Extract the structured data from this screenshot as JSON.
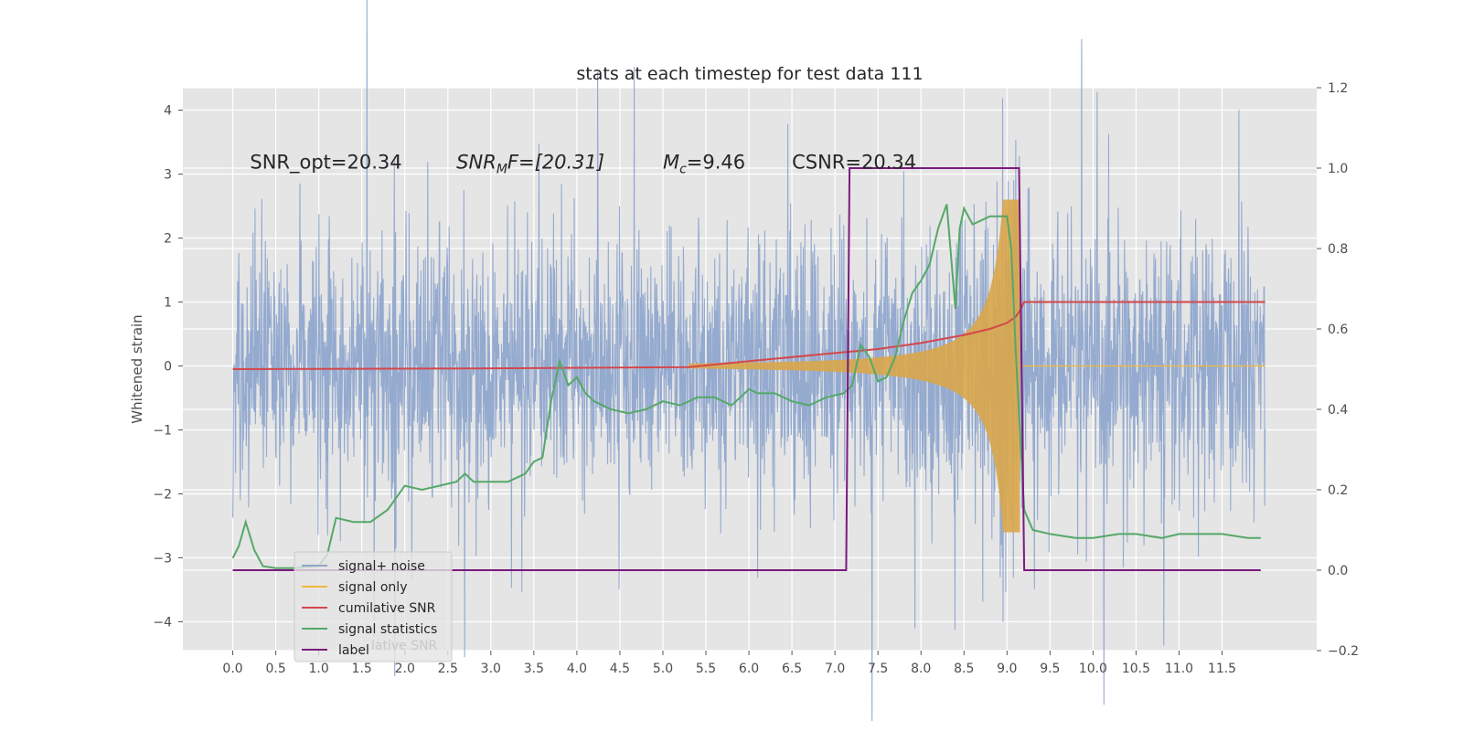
{
  "chart_data": {
    "type": "line",
    "title": "stats at each timestep for test data 111",
    "ylabel": "Whitened strain",
    "xlabel": "",
    "xlim": [
      -0.58,
      12.6
    ],
    "ylim": [
      -4.45,
      4.35
    ],
    "y2lim": [
      -0.2,
      1.2
    ],
    "x_ticks": [
      "0.0",
      "0.5",
      "1.0",
      "1.5",
      "2.0",
      "2.5",
      "3.0",
      "3.5",
      "4.0",
      "4.5",
      "5.0",
      "5.5",
      "6.0",
      "6.5",
      "7.0",
      "7.5",
      "8.0",
      "8.5",
      "9.0",
      "9.5",
      "10.0",
      "10.5",
      "11.0",
      "11.5"
    ],
    "y_ticks": [
      4,
      3,
      2,
      1,
      0,
      -1,
      -2,
      -3,
      -4
    ],
    "y2_ticks": [
      "1.2",
      "1.0",
      "0.8",
      "0.6",
      "0.4",
      "0.2",
      "0.0",
      "-0.2"
    ],
    "grid": true,
    "legend_position": "lower-left",
    "annotations": {
      "snr_opt": {
        "x": 0.2,
        "y": 3.2,
        "text": "SNR_opt=20.34"
      },
      "snr_mf": {
        "x": 2.6,
        "y": 3.2,
        "main": "SNR",
        "sub": "M",
        "tail": "F=[20.31]"
      },
      "mc": {
        "x": 5.0,
        "y": 3.2,
        "main": "M",
        "sub": "c",
        "tail": "=9.46"
      },
      "csnr": {
        "x": 6.5,
        "y": 3.2,
        "text": "CSNR=20.34"
      }
    },
    "series": [
      {
        "name": "signal+ noise",
        "axis": "left",
        "color": "#8fa7cd",
        "x_range": [
          0.0,
          12.0
        ],
        "noise_band": [
          -2.6,
          2.7
        ]
      },
      {
        "name": "signal only",
        "axis": "left",
        "color": "#f0b93c",
        "chirp_start": 5.3,
        "merger": 9.15,
        "peak_amplitude": 2.6
      },
      {
        "name": "cumilative SNR",
        "axis": "right",
        "color": "#d4474b",
        "x": [
          0.0,
          3.0,
          5.3,
          6.0,
          7.0,
          7.5,
          8.0,
          8.5,
          8.8,
          9.0,
          9.1,
          9.15,
          9.2,
          12.0
        ],
        "y": [
          0.5,
          0.502,
          0.505,
          0.52,
          0.54,
          0.55,
          0.565,
          0.585,
          0.6,
          0.615,
          0.63,
          0.645,
          0.667,
          0.667
        ]
      },
      {
        "name": "signal statistics",
        "axis": "right",
        "color": "#55a868",
        "x": [
          0.0,
          0.07,
          0.15,
          0.25,
          0.35,
          0.5,
          0.7,
          1.0,
          1.1,
          1.2,
          1.4,
          1.6,
          1.8,
          2.0,
          2.2,
          2.4,
          2.6,
          2.7,
          2.8,
          3.0,
          3.2,
          3.4,
          3.5,
          3.6,
          3.7,
          3.8,
          3.9,
          4.0,
          4.1,
          4.2,
          4.4,
          4.6,
          4.8,
          5.0,
          5.2,
          5.4,
          5.6,
          5.8,
          6.0,
          6.1,
          6.3,
          6.5,
          6.7,
          6.9,
          7.1,
          7.2,
          7.3,
          7.4,
          7.5,
          7.6,
          7.7,
          7.8,
          7.9,
          8.0,
          8.1,
          8.2,
          8.3,
          8.4,
          8.45,
          8.5,
          8.6,
          8.8,
          9.0,
          9.05,
          9.1,
          9.15,
          9.2,
          9.3,
          9.5,
          9.8,
          10.0,
          10.3,
          10.5,
          10.8,
          11.0,
          11.2,
          11.5,
          11.8,
          11.95
        ],
        "y": [
          0.03,
          0.06,
          0.12,
          0.05,
          0.01,
          0.005,
          0.005,
          0.01,
          0.04,
          0.13,
          0.12,
          0.12,
          0.15,
          0.21,
          0.2,
          0.21,
          0.22,
          0.24,
          0.22,
          0.22,
          0.22,
          0.24,
          0.27,
          0.28,
          0.42,
          0.52,
          0.46,
          0.48,
          0.44,
          0.42,
          0.4,
          0.39,
          0.4,
          0.42,
          0.41,
          0.43,
          0.43,
          0.41,
          0.45,
          0.44,
          0.44,
          0.42,
          0.41,
          0.43,
          0.44,
          0.46,
          0.56,
          0.53,
          0.47,
          0.48,
          0.53,
          0.62,
          0.69,
          0.72,
          0.76,
          0.85,
          0.91,
          0.65,
          0.85,
          0.9,
          0.86,
          0.88,
          0.88,
          0.8,
          0.55,
          0.35,
          0.15,
          0.1,
          0.09,
          0.08,
          0.08,
          0.09,
          0.09,
          0.08,
          0.09,
          0.09,
          0.09,
          0.08,
          0.08
        ]
      },
      {
        "name": "label",
        "axis": "right",
        "color": "#7b1a7e",
        "x": [
          0.0,
          7.13,
          7.17,
          9.14,
          9.2,
          11.95
        ],
        "y": [
          0.0,
          0.0,
          1.0,
          1.0,
          0.0,
          0.0
        ]
      }
    ],
    "legend_overlap_text": "lative SNR"
  }
}
